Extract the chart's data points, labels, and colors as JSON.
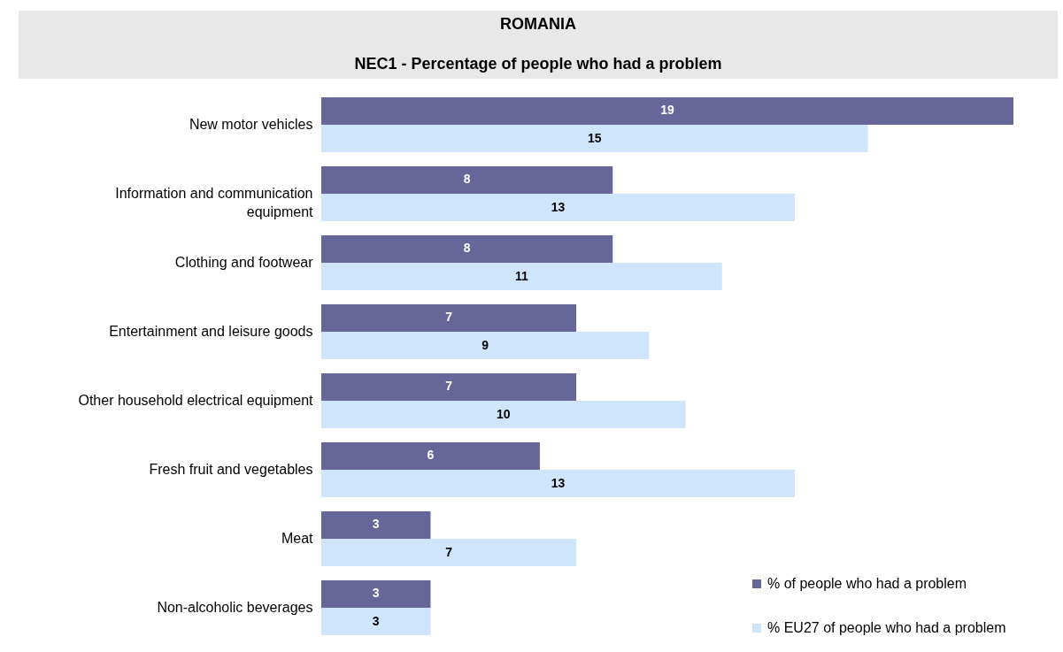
{
  "chart_data": {
    "type": "bar",
    "orientation": "horizontal",
    "title": "ROMANIA",
    "subtitle": "NEC1 - Percentage of people who had a problem",
    "categories": [
      "New motor vehicles",
      "Information and communication equipment",
      "Clothing and footwear",
      "Entertainment and leisure goods",
      "Other household electrical equipment",
      "Fresh fruit and vegetables",
      "Meat",
      "Non-alcoholic beverages"
    ],
    "series": [
      {
        "name": "% of people who had a problem",
        "color": "#666699",
        "values": [
          19,
          8,
          8,
          7,
          7,
          6,
          3,
          3
        ]
      },
      {
        "name": "% EU27 of people who had a problem",
        "color": "#cfe5fc",
        "values": [
          15,
          13,
          11,
          9,
          10,
          13,
          7,
          3
        ]
      }
    ],
    "data_labels": true,
    "legend": "bottom right"
  }
}
